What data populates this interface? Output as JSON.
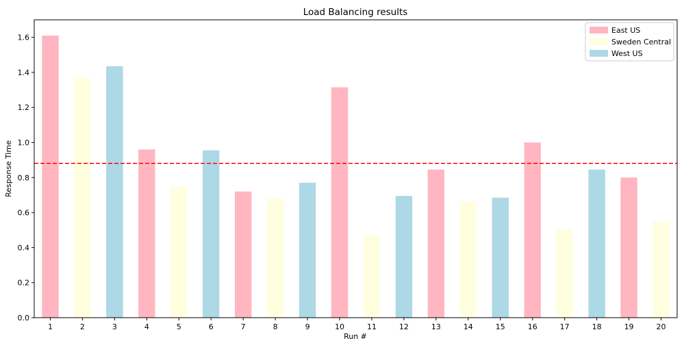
{
  "chart_data": {
    "type": "bar",
    "title": "Load Balancing results",
    "xlabel": "Run #",
    "ylabel": "Response Time",
    "ylim": [
      0,
      1.7
    ],
    "yticks": [
      0.0,
      0.2,
      0.4,
      0.6,
      0.8,
      1.0,
      1.2,
      1.4,
      1.6
    ],
    "ytick_labels": [
      "0.0",
      "0.2",
      "0.4",
      "0.6",
      "0.8",
      "1.0",
      "1.2",
      "1.4",
      "1.6"
    ],
    "categories": [
      "1",
      "2",
      "3",
      "4",
      "5",
      "6",
      "7",
      "8",
      "9",
      "10",
      "11",
      "12",
      "13",
      "14",
      "15",
      "16",
      "17",
      "18",
      "19",
      "20"
    ],
    "values": [
      1.61,
      1.37,
      1.435,
      0.96,
      0.75,
      0.955,
      0.72,
      0.68,
      0.77,
      1.315,
      0.47,
      0.695,
      0.845,
      0.665,
      0.685,
      1.0,
      0.505,
      0.845,
      0.8,
      0.55
    ],
    "regions": [
      "East US",
      "Sweden Central",
      "West US",
      "East US",
      "Sweden Central",
      "West US",
      "East US",
      "Sweden Central",
      "West US",
      "East US",
      "Sweden Central",
      "West US",
      "East US",
      "Sweden Central",
      "West US",
      "East US",
      "Sweden Central",
      "West US",
      "East US",
      "Sweden Central"
    ],
    "series": [
      {
        "name": "East US",
        "color": "#ffb6c1"
      },
      {
        "name": "Sweden Central",
        "color": "#ffffe0"
      },
      {
        "name": "West US",
        "color": "#add8e6"
      }
    ],
    "reference_line": {
      "value": 0.88,
      "color": "#ff0000",
      "style": "dashed"
    },
    "legend_position": "top-right",
    "grid": false
  }
}
